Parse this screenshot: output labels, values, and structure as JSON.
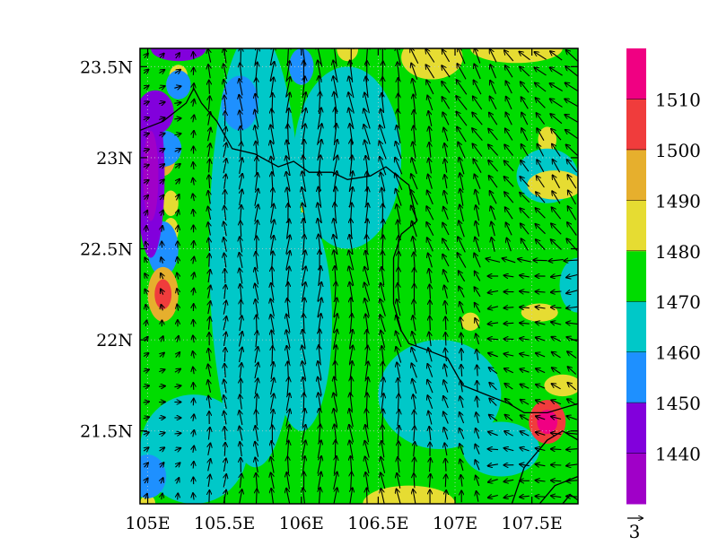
{
  "chart_data": {
    "type": "heatmap",
    "title": "",
    "x_axis": {
      "range": [
        104.95,
        107.8
      ],
      "ticks": [
        {
          "value": 105.0,
          "label": "105E"
        },
        {
          "value": 105.5,
          "label": "105.5E"
        },
        {
          "value": 106.0,
          "label": "106E"
        },
        {
          "value": 106.5,
          "label": "106.5E"
        },
        {
          "value": 107.0,
          "label": "107E"
        },
        {
          "value": 107.5,
          "label": "107.5E"
        }
      ]
    },
    "y_axis": {
      "range": [
        21.1,
        23.6
      ],
      "ticks": [
        {
          "value": 21.5,
          "label": "21.5N"
        },
        {
          "value": 22.0,
          "label": "22N"
        },
        {
          "value": 22.5,
          "label": "22.5N"
        },
        {
          "value": 23.0,
          "label": "23N"
        },
        {
          "value": 23.5,
          "label": "23.5N"
        }
      ]
    },
    "grid": true,
    "colorbar": {
      "placement": "right",
      "levels": [
        1440,
        1450,
        1460,
        1470,
        1480,
        1490,
        1500,
        1510
      ],
      "bands": [
        {
          "color": "#a000c8"
        },
        {
          "color": "#8200dc"
        },
        {
          "color": "#1e90ff"
        },
        {
          "color": "#00c8c8"
        },
        {
          "color": "#00dc00"
        },
        {
          "color": "#e6dc32"
        },
        {
          "color": "#e6af2d"
        },
        {
          "color": "#f03c3c"
        },
        {
          "color": "#f00082"
        }
      ]
    },
    "field_blobs": [
      {
        "lon": 105.02,
        "lat": 22.9,
        "rlon": 0.09,
        "rlat": 0.45,
        "value": 1442
      },
      {
        "lon": 105.05,
        "lat": 23.25,
        "rlon": 0.12,
        "rlat": 0.12,
        "value": 1445
      },
      {
        "lon": 105.2,
        "lat": 23.6,
        "rlon": 0.18,
        "rlat": 0.07,
        "value": 1447
      },
      {
        "lon": 105.2,
        "lat": 23.4,
        "rlon": 0.08,
        "rlat": 0.08,
        "value": 1455
      },
      {
        "lon": 105.1,
        "lat": 23.05,
        "rlon": 0.12,
        "rlat": 0.1,
        "value": 1452
      },
      {
        "lon": 105.1,
        "lat": 22.5,
        "rlon": 0.1,
        "rlat": 0.15,
        "value": 1455
      },
      {
        "lon": 105.0,
        "lat": 21.25,
        "rlon": 0.12,
        "rlat": 0.12,
        "value": 1453
      },
      {
        "lon": 105.6,
        "lat": 23.3,
        "rlon": 0.12,
        "rlat": 0.15,
        "value": 1456
      },
      {
        "lon": 106.0,
        "lat": 23.5,
        "rlon": 0.08,
        "rlat": 0.1,
        "value": 1456
      },
      {
        "lon": 105.7,
        "lat": 22.5,
        "rlon": 0.3,
        "rlat": 1.2,
        "value": 1465
      },
      {
        "lon": 106.0,
        "lat": 22.1,
        "rlon": 0.2,
        "rlat": 0.6,
        "value": 1463
      },
      {
        "lon": 106.3,
        "lat": 23.0,
        "rlon": 0.35,
        "rlat": 0.5,
        "value": 1465
      },
      {
        "lon": 106.9,
        "lat": 21.7,
        "rlon": 0.4,
        "rlat": 0.3,
        "value": 1465
      },
      {
        "lon": 105.3,
        "lat": 21.4,
        "rlon": 0.35,
        "rlat": 0.3,
        "value": 1465
      },
      {
        "lon": 107.3,
        "lat": 21.4,
        "rlon": 0.25,
        "rlat": 0.15,
        "value": 1465
      },
      {
        "lon": 107.6,
        "lat": 22.9,
        "rlon": 0.2,
        "rlat": 0.15,
        "value": 1465
      },
      {
        "lon": 107.8,
        "lat": 22.3,
        "rlon": 0.12,
        "rlat": 0.15,
        "value": 1465
      },
      {
        "lon": 105.1,
        "lat": 22.25,
        "rlon": 0.1,
        "rlat": 0.15,
        "value": 1497
      },
      {
        "lon": 105.1,
        "lat": 23.0,
        "rlon": 0.08,
        "rlat": 0.1,
        "value": 1495
      },
      {
        "lon": 105.15,
        "lat": 22.6,
        "rlon": 0.05,
        "rlat": 0.07,
        "value": 1485
      },
      {
        "lon": 105.15,
        "lat": 22.75,
        "rlon": 0.05,
        "rlat": 0.07,
        "value": 1485
      },
      {
        "lon": 105.2,
        "lat": 23.45,
        "rlon": 0.06,
        "rlat": 0.06,
        "value": 1485
      },
      {
        "lon": 106.1,
        "lat": 22.72,
        "rlon": 0.1,
        "rlat": 0.12,
        "value": 1484
      },
      {
        "lon": 106.3,
        "lat": 23.6,
        "rlon": 0.07,
        "rlat": 0.07,
        "value": 1485
      },
      {
        "lon": 106.85,
        "lat": 23.55,
        "rlon": 0.2,
        "rlat": 0.12,
        "value": 1488
      },
      {
        "lon": 107.4,
        "lat": 23.6,
        "rlon": 0.3,
        "rlat": 0.08,
        "value": 1484
      },
      {
        "lon": 107.6,
        "lat": 23.1,
        "rlon": 0.06,
        "rlat": 0.07,
        "value": 1484
      },
      {
        "lon": 107.65,
        "lat": 22.85,
        "rlon": 0.18,
        "rlat": 0.08,
        "value": 1488
      },
      {
        "lon": 107.1,
        "lat": 22.1,
        "rlon": 0.06,
        "rlat": 0.05,
        "value": 1484
      },
      {
        "lon": 107.55,
        "lat": 22.15,
        "rlon": 0.12,
        "rlat": 0.05,
        "value": 1484
      },
      {
        "lon": 107.6,
        "lat": 21.55,
        "rlon": 0.12,
        "rlat": 0.12,
        "value": 1505
      },
      {
        "lon": 107.7,
        "lat": 21.75,
        "rlon": 0.12,
        "rlat": 0.06,
        "value": 1485
      },
      {
        "lon": 105.7,
        "lat": 21.45,
        "rlon": 0.06,
        "rlat": 0.05,
        "value": 1484
      },
      {
        "lon": 106.7,
        "lat": 21.1,
        "rlon": 0.3,
        "rlat": 0.1,
        "value": 1486
      },
      {
        "lon": 107.1,
        "lat": 21.05,
        "rlon": 0.15,
        "rlat": 0.05,
        "value": 1490
      },
      {
        "lon": 105.0,
        "lat": 21.1,
        "rlon": 0.05,
        "rlat": 0.05,
        "value": 1485
      }
    ],
    "wind_vectors": {
      "reference_vector": 3,
      "reference_label": "3"
    }
  }
}
